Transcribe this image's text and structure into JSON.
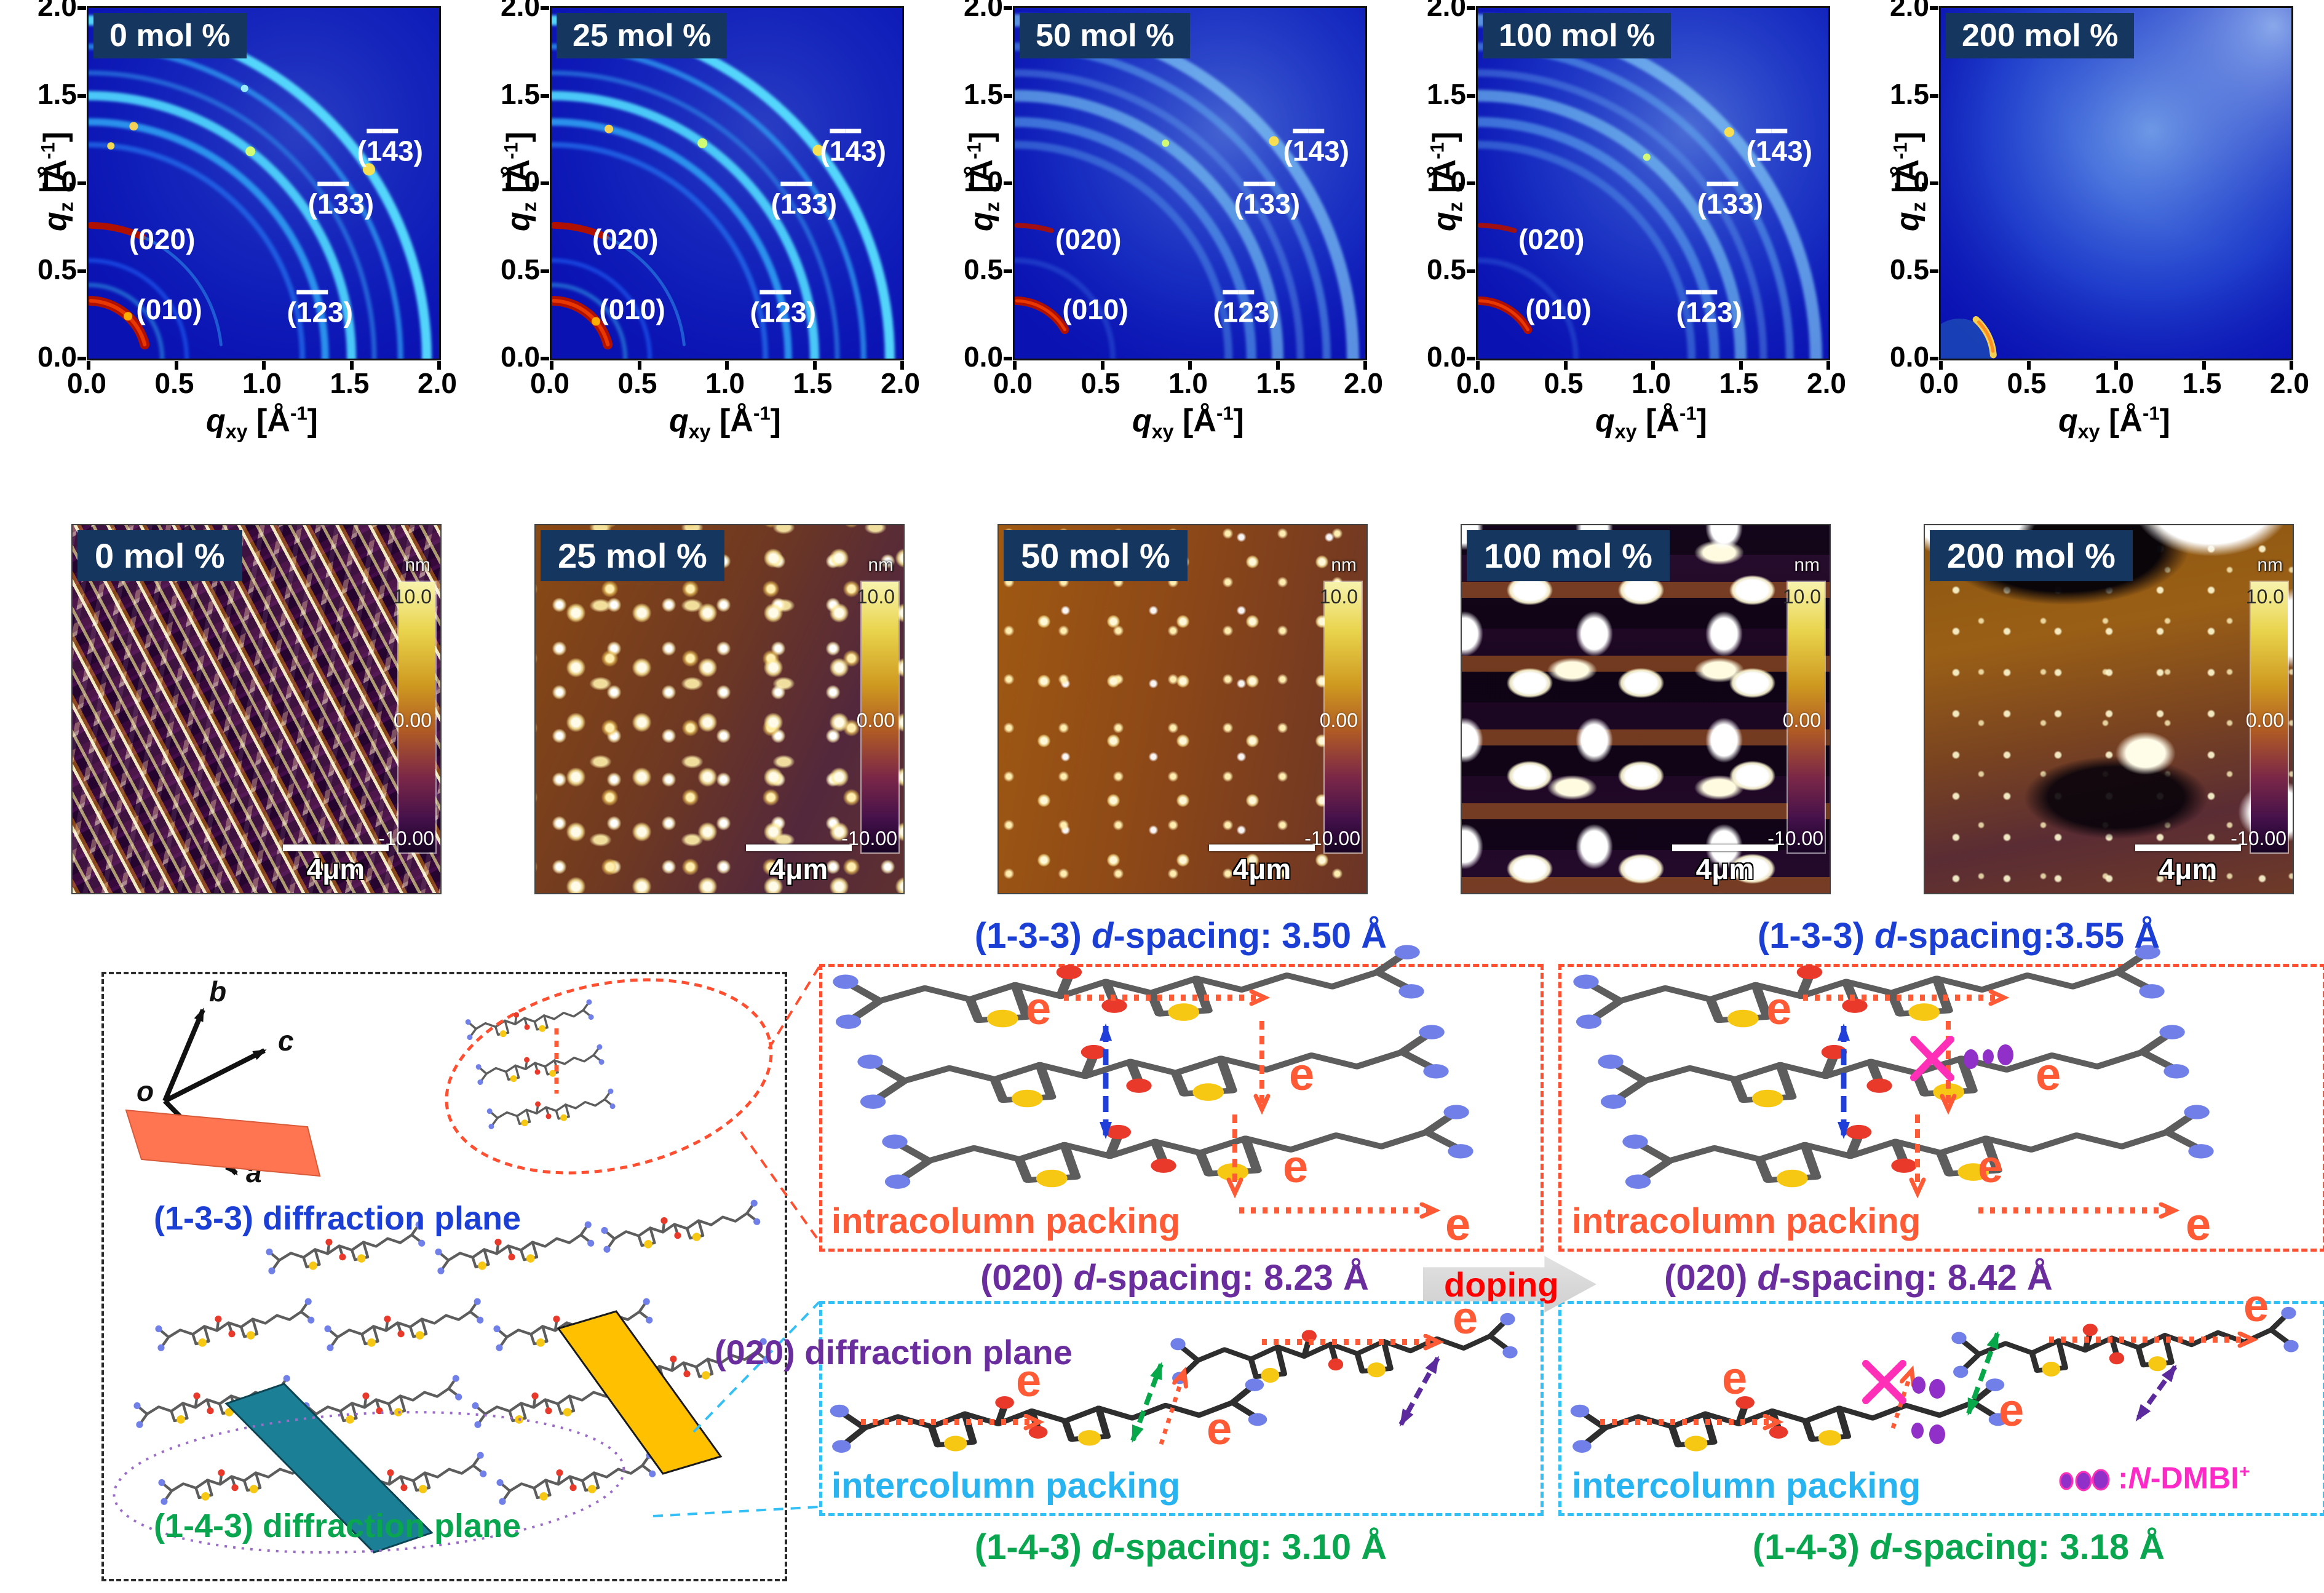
{
  "figure": {
    "giwaxs": {
      "panels": [
        {
          "label": "0 mol %",
          "pattern": "sharp polycrystalline rings",
          "peaks_labeled": true
        },
        {
          "label": "25 mol %",
          "pattern": "sharp polycrystalline rings",
          "peaks_labeled": true
        },
        {
          "label": "50 mol %",
          "pattern": "weakened diffuse rings",
          "peaks_labeled": true
        },
        {
          "label": "100 mol %",
          "pattern": "weak diffuse rings",
          "peaks_labeled": true
        },
        {
          "label": "200 mol %",
          "pattern": "amorphous halo",
          "peaks_labeled": false
        }
      ],
      "peak_labels": [
        {
          "text": "(020)",
          "overbar_chars": []
        },
        {
          "text": "(010)",
          "overbar_chars": []
        },
        {
          "text": "(123)",
          "overbar_chars": [
            1,
            2
          ]
        },
        {
          "text": "(133)",
          "overbar_chars": [
            1,
            2
          ]
        },
        {
          "text": "(143)",
          "overbar_chars": [
            1,
            2
          ]
        }
      ],
      "x_axis": {
        "symbol": "q",
        "subscript": "xy",
        "unit_prefix": "[Å",
        "unit_sup": "-1",
        "unit_suffix": "]",
        "ticks": [
          "0.0",
          "0.5",
          "1.0",
          "1.5",
          "2.0"
        ]
      },
      "y_axis": {
        "symbol": "q",
        "subscript": "z",
        "unit_prefix": "[Å",
        "unit_sup": "-1",
        "unit_suffix": "]",
        "ticks": [
          "0.0",
          "0.5",
          "1.0",
          "1.5",
          "2.0"
        ]
      }
    },
    "afm": {
      "panels": [
        {
          "label": "0 mol %",
          "morphology": "dense nanofiber network"
        },
        {
          "label": "25 mol %",
          "morphology": "grainy film with bright aggregates"
        },
        {
          "label": "50 mol %",
          "morphology": "smooth film with fine grains"
        },
        {
          "label": "100 mol %",
          "morphology": "film with large bright domains"
        },
        {
          "label": "200 mol %",
          "morphology": "terraced film with large white aggregates"
        }
      ],
      "colorbar": {
        "unit": "nm",
        "max": "10.0",
        "mid": "0.00",
        "min": "-10.00"
      },
      "scale_bar": "4μm"
    },
    "packing": {
      "crystal_axes": {
        "origin": "o",
        "a": "a",
        "b": "b",
        "c": "c"
      },
      "plane_labels": {
        "p133": "(1-3-3) diffraction plane",
        "p020": "(020) diffraction plane",
        "p143": "(1-4-3) diffraction plane"
      },
      "electron": "e",
      "doping_arrow": "doping",
      "pristine": {
        "d133": {
          "prefix": "(1-3-3) ",
          "d": "d",
          "suffix": "-spacing: 3.50 Å"
        },
        "intracolumn": "intracolumn packing",
        "d020": {
          "prefix": "(020) ",
          "d": "d",
          "suffix": "-spacing: 8.23 Å"
        },
        "intercolumn": "intercolumn packing",
        "d143": {
          "prefix": "(1-4-3) ",
          "d": "d",
          "suffix": "-spacing: 3.10 Å"
        }
      },
      "doped": {
        "d133": {
          "prefix": "(1-3-3) ",
          "d": "d",
          "suffix": "-spacing:3.55 Å"
        },
        "intracolumn": "intracolumn packing",
        "d020": {
          "prefix": "(020) ",
          "d": "d",
          "suffix": "-spacing: 8.42 Å"
        },
        "intercolumn": "intercolumn packing",
        "d143": {
          "prefix": "(1-4-3) ",
          "d": "d",
          "suffix": "-spacing: 3.18 Å"
        },
        "dopant_legend": {
          "colon": ":",
          "n": "N",
          "rest": "-DMBI",
          "sup": "+"
        }
      }
    },
    "colors": {
      "chip_bg": "#15365f",
      "blue": "#1b3fd4",
      "purple": "#6a2d9e",
      "green": "#0aa64f",
      "orange": "#ff5a36",
      "cyan": "#28b4f0",
      "red": "#ff0000",
      "magenta": "#ff29c8",
      "dopant_dot": "#9030c8",
      "plane_133": "#ff7552",
      "plane_020": "#ffc000",
      "plane_143": "#1b7f96"
    }
  }
}
